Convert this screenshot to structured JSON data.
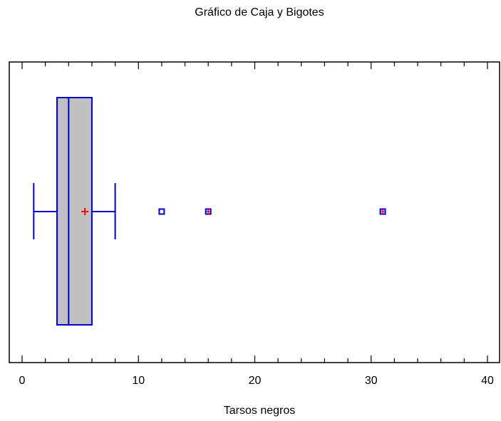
{
  "chart_data": {
    "type": "boxplot",
    "title": "Gráfico de Caja y Bigotes",
    "xlabel": "Tarsos negros",
    "xlim": [
      -1,
      41
    ],
    "xticks": [
      0,
      10,
      20,
      30,
      40
    ],
    "tick_labels": [
      "0",
      "10",
      "20",
      "30",
      "40"
    ],
    "grid": false,
    "box": {
      "whisker_low": 1,
      "q1": 3,
      "median": 4,
      "q3": 6,
      "whisker_high": 8,
      "mean": 5.4
    },
    "outliers": [
      12,
      16,
      31
    ],
    "far_outliers": [
      16,
      31
    ],
    "colors": {
      "box_fill": "#c0c0c0",
      "box_line": "#0000cc",
      "mean_marker": "#ff0000",
      "axes": "#000000"
    }
  }
}
